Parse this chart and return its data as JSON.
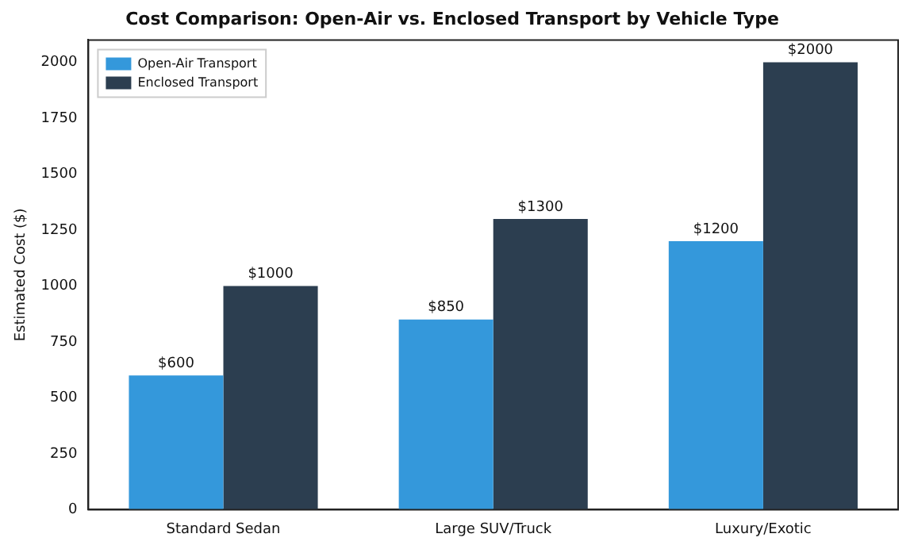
{
  "chart_data": {
    "type": "bar",
    "title": "Cost Comparison: Open-Air vs. Enclosed Transport by Vehicle Type",
    "ylabel": "Estimated Cost ($)",
    "categories": [
      "Standard Sedan",
      "Large SUV/Truck",
      "Luxury/Exotic"
    ],
    "series": [
      {
        "name": "Open-Air Transport",
        "color": "#3498db",
        "values": [
          600,
          850,
          1200
        ],
        "value_labels": [
          "$600",
          "$850",
          "$1200"
        ]
      },
      {
        "name": "Enclosed Transport",
        "color": "#2c3e50",
        "values": [
          1000,
          1300,
          2000
        ],
        "value_labels": [
          "$1000",
          "$1300",
          "$2000"
        ]
      }
    ],
    "ylim": [
      0,
      2100
    ],
    "yticks": [
      0,
      250,
      500,
      750,
      1000,
      1250,
      1500,
      1750,
      2000
    ],
    "grid": false,
    "legend": "top left"
  }
}
